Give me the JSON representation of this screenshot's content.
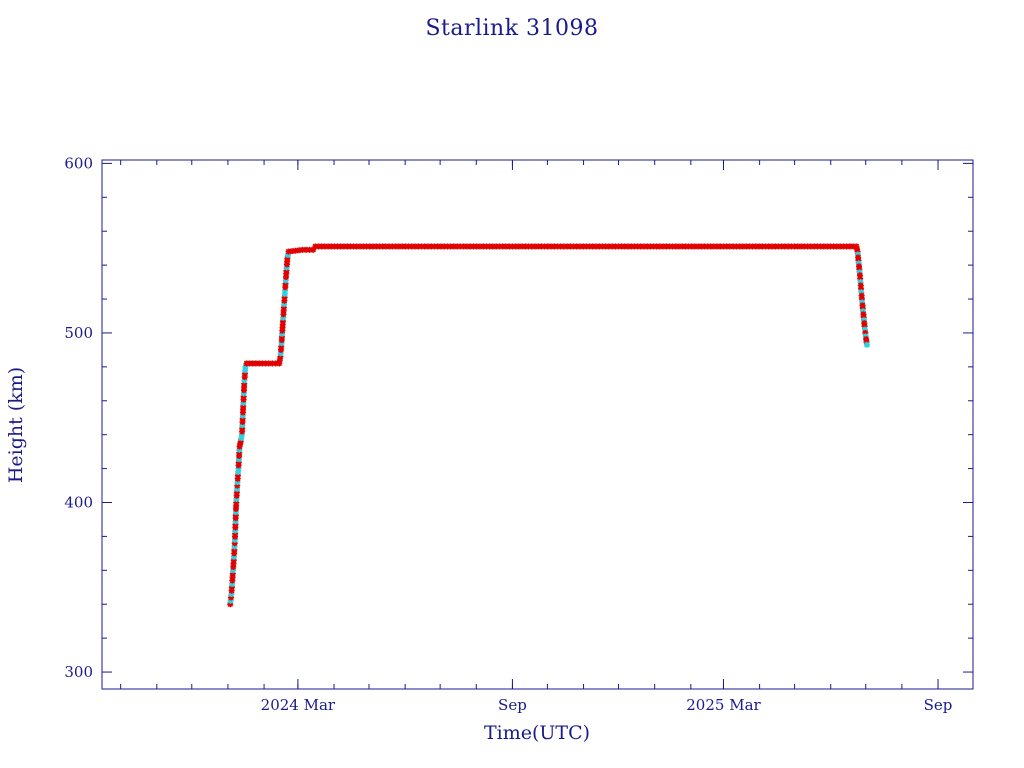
{
  "chart_data": {
    "type": "line",
    "title": "Starlink 31098",
    "xlabel": "Time(UTC)",
    "ylabel": "Height (km)",
    "ylim": [
      290,
      602
    ],
    "xlim": [
      "2023-09-15",
      "2025-10-01"
    ],
    "y_ticks": [
      300,
      400,
      500,
      600
    ],
    "x_ticks": [
      {
        "date": "2024-03-01",
        "label": "2024 Mar"
      },
      {
        "date": "2024-09-01",
        "label": "Sep"
      },
      {
        "date": "2025-03-01",
        "label": "2025 Mar"
      },
      {
        "date": "2025-09-01",
        "label": "Sep"
      }
    ],
    "colors": {
      "axis": "#1a1a8c",
      "line": "#1a1a8c",
      "markers": "#e00000",
      "markers_alt": "#30d0e0"
    },
    "series": [
      {
        "points": [
          [
            "2024-01-03",
            340
          ],
          [
            "2024-01-04",
            346
          ],
          [
            "2024-01-05",
            356
          ],
          [
            "2024-01-06",
            366
          ],
          [
            "2024-01-07",
            378
          ],
          [
            "2024-01-08",
            398
          ],
          [
            "2024-01-09",
            410
          ],
          [
            "2024-01-10",
            420
          ],
          [
            "2024-01-11",
            433
          ],
          [
            "2024-01-12",
            436
          ],
          [
            "2024-01-13",
            440
          ],
          [
            "2024-01-14",
            455
          ],
          [
            "2024-01-15",
            470
          ],
          [
            "2024-01-16",
            480
          ],
          [
            "2024-01-17",
            482
          ],
          [
            "2024-01-25",
            482
          ],
          [
            "2024-02-05",
            482
          ],
          [
            "2024-02-14",
            482
          ],
          [
            "2024-02-15",
            486
          ],
          [
            "2024-02-16",
            494
          ],
          [
            "2024-02-17",
            505
          ],
          [
            "2024-02-18",
            515
          ],
          [
            "2024-02-19",
            525
          ],
          [
            "2024-02-20",
            535
          ],
          [
            "2024-02-21",
            544
          ],
          [
            "2024-02-22",
            548
          ],
          [
            "2024-03-05",
            549
          ],
          [
            "2024-03-14",
            549
          ],
          [
            "2024-03-16",
            551
          ],
          [
            "2024-04-15",
            551
          ],
          [
            "2024-06-15",
            551
          ],
          [
            "2024-09-01",
            551
          ],
          [
            "2024-12-01",
            551
          ],
          [
            "2025-03-01",
            551
          ],
          [
            "2025-05-01",
            551
          ],
          [
            "2025-06-23",
            551
          ],
          [
            "2025-06-24",
            548
          ],
          [
            "2025-06-25",
            541
          ],
          [
            "2025-06-26",
            534
          ],
          [
            "2025-06-27",
            526
          ],
          [
            "2025-06-28",
            518
          ],
          [
            "2025-06-29",
            511
          ],
          [
            "2025-06-30",
            504
          ],
          [
            "2025-07-01",
            498
          ],
          [
            "2025-07-02",
            493
          ]
        ]
      }
    ]
  }
}
